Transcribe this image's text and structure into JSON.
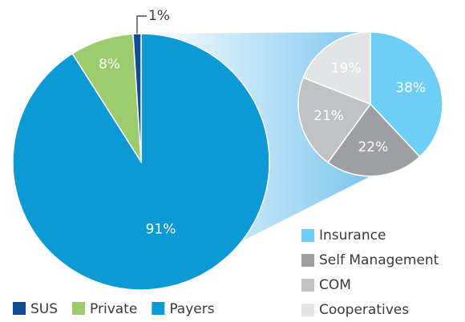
{
  "chart_data": {
    "type": "pie-of-pie",
    "series": [
      {
        "name": "main",
        "categories": [
          "SUS",
          "Private",
          "Payers"
        ],
        "values": [
          1,
          8,
          91
        ],
        "value_labels": [
          "1%",
          "8%",
          "91%"
        ],
        "colors": [
          "#0e4d92",
          "#9bcb6b",
          "#0b9ad6"
        ]
      },
      {
        "name": "detail",
        "categories": [
          "Insurance",
          "Self Management",
          "COM",
          "Cooperatives"
        ],
        "values": [
          38,
          22,
          21,
          19
        ],
        "value_labels": [
          "38%",
          "22%",
          "21%",
          "19%"
        ],
        "colors": [
          "#6dcff6",
          "#9d9fa2",
          "#c1c2c4",
          "#e3e4e5"
        ]
      }
    ]
  }
}
